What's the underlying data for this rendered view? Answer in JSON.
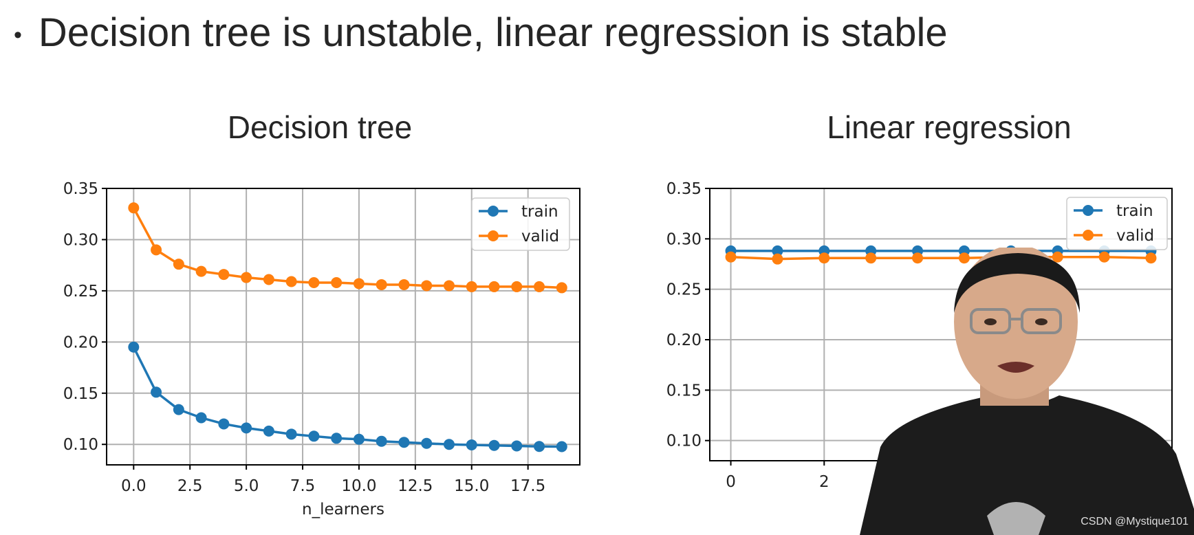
{
  "slide": {
    "bullet": "•",
    "heading": "Decision tree is unstable, linear regression is stable",
    "watermark": "CSDN @Mystique101"
  },
  "colors": {
    "train": "#1f77b4",
    "valid": "#ff7f0e"
  },
  "presenter_icon": "presenter-video-overlay",
  "chart_data": [
    {
      "type": "line",
      "title": "Decision tree",
      "xlabel": "n_learners",
      "ylabel": "",
      "x": [
        0,
        1,
        2,
        3,
        4,
        5,
        6,
        7,
        8,
        9,
        10,
        11,
        12,
        13,
        14,
        15,
        16,
        17,
        18,
        19
      ],
      "xlim": [
        -1.2,
        19.8
      ],
      "ylim": [
        0.08,
        0.35
      ],
      "xticks": [
        0,
        2.5,
        5,
        7.5,
        10,
        12.5,
        15,
        17.5
      ],
      "xtick_labels": [
        "0.0",
        "2.5",
        "5.0",
        "7.5",
        "10.0",
        "12.5",
        "15.0",
        "17.5"
      ],
      "yticks": [
        0.1,
        0.15,
        0.2,
        0.25,
        0.3,
        0.35
      ],
      "ytick_labels": [
        "0.10",
        "0.15",
        "0.20",
        "0.25",
        "0.30",
        "0.35"
      ],
      "grid": true,
      "legend": "top-right",
      "series": [
        {
          "name": "train",
          "values": [
            0.195,
            0.151,
            0.134,
            0.126,
            0.12,
            0.116,
            0.113,
            0.11,
            0.108,
            0.106,
            0.105,
            0.103,
            0.102,
            0.101,
            0.1,
            0.0995,
            0.099,
            0.0985,
            0.098,
            0.0978
          ]
        },
        {
          "name": "valid",
          "values": [
            0.331,
            0.29,
            0.276,
            0.269,
            0.266,
            0.263,
            0.261,
            0.259,
            0.258,
            0.258,
            0.257,
            0.256,
            0.256,
            0.255,
            0.255,
            0.254,
            0.254,
            0.254,
            0.254,
            0.253
          ]
        }
      ]
    },
    {
      "type": "line",
      "title": "Linear regression",
      "xlabel": "",
      "ylabel": "",
      "x": [
        0,
        1,
        2,
        3,
        4,
        5,
        6,
        7,
        8,
        9
      ],
      "xlim": [
        -0.45,
        9.45
      ],
      "ylim": [
        0.08,
        0.35
      ],
      "xticks": [
        0,
        2
      ],
      "xtick_labels": [
        "0",
        "2"
      ],
      "yticks": [
        0.1,
        0.15,
        0.2,
        0.25,
        0.3,
        0.35
      ],
      "ytick_labels": [
        "0.10",
        "0.15",
        "0.20",
        "0.25",
        "0.30",
        "0.35"
      ],
      "grid": true,
      "legend": "top-right",
      "series": [
        {
          "name": "train",
          "values": [
            0.288,
            0.288,
            0.288,
            0.288,
            0.288,
            0.288,
            0.288,
            0.288,
            0.288,
            0.288
          ]
        },
        {
          "name": "valid",
          "values": [
            0.282,
            0.28,
            0.281,
            0.281,
            0.281,
            0.281,
            0.282,
            0.282,
            0.282,
            0.281
          ]
        }
      ]
    }
  ]
}
